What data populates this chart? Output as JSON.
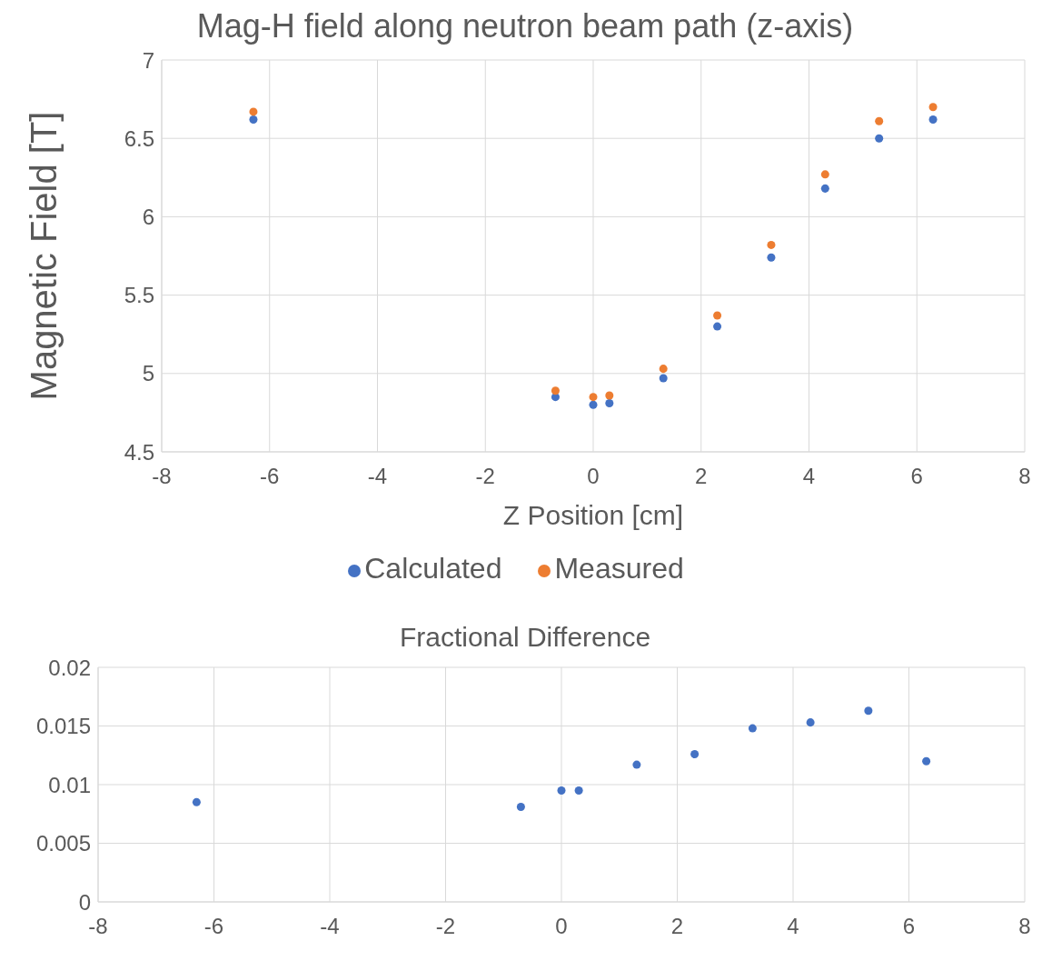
{
  "chart_data": [
    {
      "type": "scatter",
      "title": "Mag-H field along neutron beam path (z-axis)",
      "xlabel": "Z Position [cm]",
      "ylabel": "Magnetic Field [T]",
      "x": [
        -6.3,
        -0.7,
        0,
        0.3,
        1.3,
        2.3,
        3.3,
        4.3,
        5.3,
        6.3
      ],
      "series": [
        {
          "name": "Calculated",
          "color": "#4472c4",
          "values": [
            6.62,
            4.85,
            4.8,
            4.81,
            4.97,
            5.3,
            5.74,
            6.18,
            6.5,
            6.62
          ]
        },
        {
          "name": "Measured",
          "color": "#ed7d31",
          "values": [
            6.67,
            4.89,
            4.85,
            4.86,
            5.03,
            5.37,
            5.82,
            6.27,
            6.61,
            6.7
          ]
        }
      ],
      "xlim": [
        -8,
        8
      ],
      "xticks": [
        -8,
        -6,
        -4,
        -2,
        0,
        2,
        4,
        6,
        8
      ],
      "ylim": [
        4.5,
        7
      ],
      "yticks": [
        4.5,
        5,
        5.5,
        6,
        6.5,
        7
      ],
      "grid": true,
      "legend": "bottom",
      "marker": "circle"
    },
    {
      "type": "scatter",
      "title": "Fractional Difference",
      "x": [
        -6.3,
        -0.7,
        0,
        0.3,
        1.3,
        2.3,
        3.3,
        4.3,
        5.3,
        6.3
      ],
      "series": [
        {
          "color": "#4472c4",
          "values": [
            0.0085,
            0.0081,
            0.0095,
            0.0095,
            0.0117,
            0.0126,
            0.0148,
            0.0153,
            0.0163,
            0.012
          ]
        }
      ],
      "xlim": [
        -8,
        8
      ],
      "xticks": [
        -8,
        -6,
        -4,
        -2,
        0,
        2,
        4,
        6,
        8
      ],
      "ylim": [
        0,
        0.02
      ],
      "yticks": [
        0,
        0.005,
        0.01,
        0.015,
        0.02
      ],
      "grid": true,
      "marker": "circle"
    }
  ]
}
